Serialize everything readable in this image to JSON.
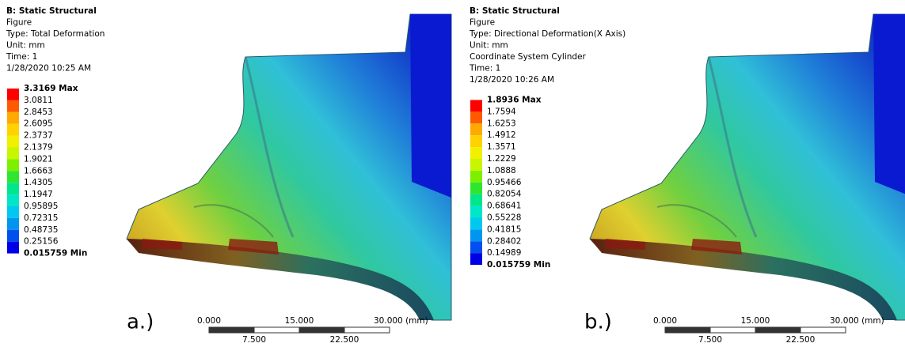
{
  "panels": [
    {
      "header": [
        "B: Static Structural",
        "Figure",
        "Type: Total Deformation",
        "Unit: mm",
        "Time: 1",
        "1/28/2020 10:25 AM"
      ],
      "legend": {
        "labels": [
          "3.3169 Max",
          "3.0811",
          "2.8453",
          "2.6095",
          "2.3737",
          "2.1379",
          "1.9021",
          "1.6663",
          "1.4305",
          "1.1947",
          "0.95895",
          "0.72315",
          "0.48735",
          "0.25156",
          "0.015759 Min"
        ],
        "colors": [
          "#ff0000",
          "#ff5a00",
          "#ffaa00",
          "#ffd200",
          "#f0f000",
          "#c8f500",
          "#7df000",
          "#2ee62e",
          "#00e68c",
          "#00e6c8",
          "#00c8f0",
          "#0096f0",
          "#0050f0",
          "#0000e6"
        ]
      },
      "scale_bar": {
        "top": [
          "0.000",
          "15.000",
          "30.000 (mm)"
        ],
        "bottom": [
          "7.500",
          "22.500"
        ]
      },
      "label": "a.)"
    },
    {
      "header": [
        "B: Static Structural",
        "Figure",
        "Type: Directional Deformation(X Axis)",
        "Unit: mm",
        "Coordinate System Cylinder",
        "Time: 1",
        "1/28/2020 10:26 AM"
      ],
      "legend": {
        "labels": [
          "1.8936 Max",
          "1.7594",
          "1.6253",
          "1.4912",
          "1.3571",
          "1.2229",
          "1.0888",
          "0.95466",
          "0.82054",
          "0.68641",
          "0.55228",
          "0.41815",
          "0.28402",
          "0.14989",
          "0.015759 Min"
        ],
        "colors": [
          "#ff0000",
          "#ff5a00",
          "#ffaa00",
          "#ffd200",
          "#f0f000",
          "#c8f500",
          "#7df000",
          "#2ee62e",
          "#00e68c",
          "#00e6c8",
          "#00c8f0",
          "#0096f0",
          "#0050f0",
          "#0000e6"
        ]
      },
      "scale_bar": {
        "top": [
          "0.000",
          "15.000",
          "30.000 (mm)"
        ],
        "bottom": [
          "7.500",
          "22.500"
        ]
      },
      "label": "b.)"
    }
  ]
}
